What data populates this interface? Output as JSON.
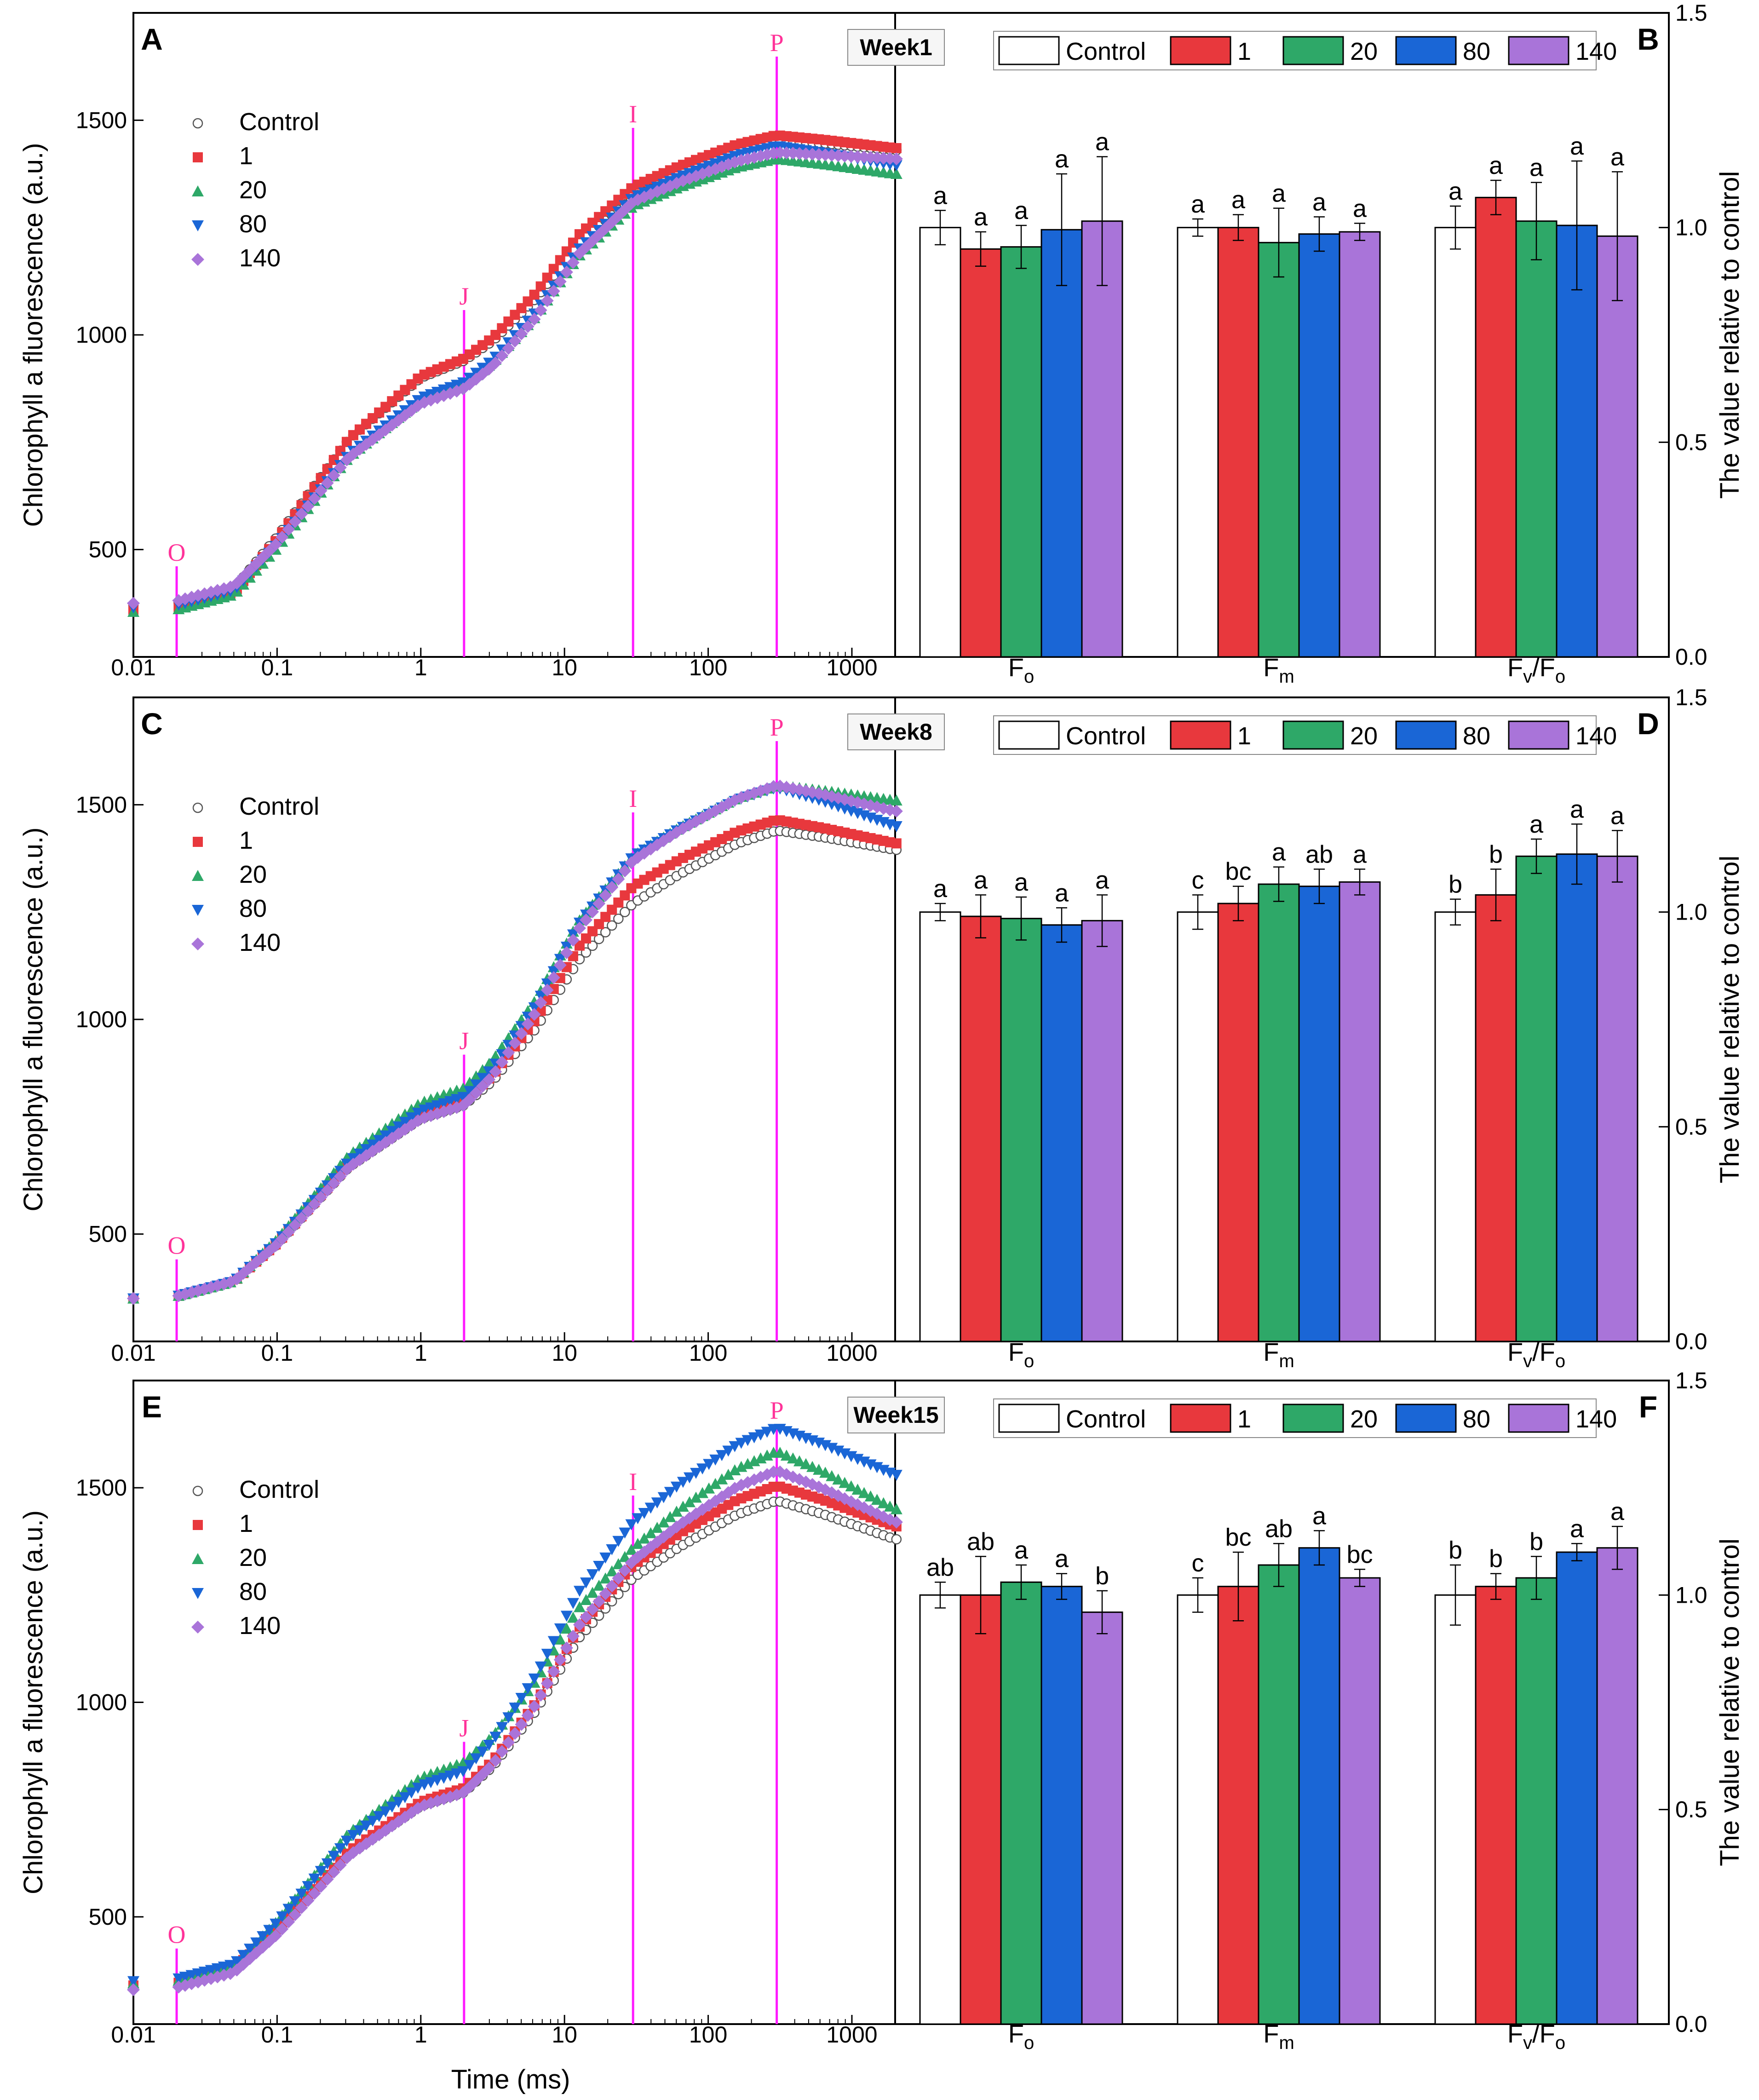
{
  "figure": {
    "x_axis_title": "Time (ms)",
    "y_axis_title_left": "Chlorophyll a fluorescence (a.u.)",
    "y_axis_title_right": "The value relative to control",
    "x_tick_labels": [
      "0.01",
      "0.1",
      "1",
      "10",
      "100",
      "1000"
    ],
    "y_tick_labels_left": [
      "500",
      "1000",
      "1500"
    ],
    "y_tick_labels_right": [
      "0.0",
      "0.5",
      "1.0",
      "1.5"
    ],
    "ojip_markers": [
      {
        "label": "O",
        "time_ms": 0.02
      },
      {
        "label": "J",
        "time_ms": 2
      },
      {
        "label": "I",
        "time_ms": 30
      },
      {
        "label": "P",
        "time_ms": 300
      }
    ],
    "categories": [
      "Fo",
      "Fm",
      "Fv/Fo"
    ],
    "series": [
      {
        "name": "Control",
        "color": "#ffffff",
        "marker": "circle-open"
      },
      {
        "name": "1",
        "color": "#e8383d",
        "marker": "square"
      },
      {
        "name": "20",
        "color": "#2ea868",
        "marker": "triangle-up"
      },
      {
        "name": "80",
        "color": "#1a66d6",
        "marker": "triangle-down"
      },
      {
        "name": "140",
        "color": "#a974d9",
        "marker": "diamond"
      }
    ],
    "marker_color": "#ff1aff",
    "marker_label_color": "#ff3399"
  },
  "chart_data": [
    {
      "panel": "A",
      "type": "scatter",
      "week_label": "Week1",
      "xlabel": "Time (ms)",
      "ylabel": "Chlorophyll a fluorescence (a.u.)",
      "x_scale": "log",
      "xlim": [
        0.01,
        2000
      ],
      "ylim": [
        250,
        1750
      ],
      "curves": {
        "Control": {
          "F0": 370,
          "J": 940,
          "I": 1320,
          "P": 1455,
          "end": 1430
        },
        "1": {
          "F0": 360,
          "J": 945,
          "I": 1345,
          "P": 1465,
          "end": 1435
        },
        "20": {
          "F0": 355,
          "J": 885,
          "I": 1300,
          "P": 1410,
          "end": 1375
        },
        "80": {
          "F0": 365,
          "J": 890,
          "I": 1320,
          "P": 1440,
          "end": 1395
        },
        "140": {
          "F0": 375,
          "J": 875,
          "I": 1310,
          "P": 1425,
          "end": 1410
        }
      }
    },
    {
      "panel": "B",
      "type": "bar",
      "week_label": "Week1",
      "ylabel": "The value relative to control",
      "ylim": [
        0,
        1.5
      ],
      "categories": [
        "Fo",
        "Fm",
        "Fv/Fo"
      ],
      "series": [
        {
          "name": "Control",
          "values": [
            1.0,
            1.0,
            1.0
          ],
          "errors": [
            0.04,
            0.02,
            0.05
          ],
          "letters": [
            "a",
            "a",
            "a"
          ]
        },
        {
          "name": "1",
          "values": [
            0.95,
            1.0,
            1.07
          ],
          "errors": [
            0.04,
            0.03,
            0.04
          ],
          "letters": [
            "a",
            "a",
            "a"
          ]
        },
        {
          "name": "20",
          "values": [
            0.955,
            0.965,
            1.015
          ],
          "errors": [
            0.05,
            0.08,
            0.09
          ],
          "letters": [
            "a",
            "a",
            "a"
          ]
        },
        {
          "name": "80",
          "values": [
            0.995,
            0.985,
            1.005
          ],
          "errors": [
            0.13,
            0.04,
            0.15
          ],
          "letters": [
            "a",
            "a",
            "a"
          ]
        },
        {
          "name": "140",
          "values": [
            1.015,
            0.99,
            0.98
          ],
          "errors": [
            0.15,
            0.02,
            0.15
          ],
          "letters": [
            "a",
            "a",
            "a"
          ]
        }
      ]
    },
    {
      "panel": "C",
      "type": "scatter",
      "week_label": "Week8",
      "xlabel": "Time (ms)",
      "ylabel": "Chlorophyll a fluorescence (a.u.)",
      "x_scale": "log",
      "xlim": [
        0.01,
        2000
      ],
      "ylim": [
        250,
        1750
      ],
      "curves": {
        "Control": {
          "F0": 350,
          "J": 800,
          "I": 1270,
          "P": 1440,
          "end": 1395
        },
        "1": {
          "F0": 350,
          "J": 810,
          "I": 1310,
          "P": 1465,
          "end": 1410
        },
        "20": {
          "F0": 350,
          "J": 840,
          "I": 1380,
          "P": 1545,
          "end": 1510
        },
        "80": {
          "F0": 350,
          "J": 820,
          "I": 1380,
          "P": 1540,
          "end": 1450
        },
        "140": {
          "F0": 350,
          "J": 800,
          "I": 1370,
          "P": 1545,
          "end": 1485
        }
      }
    },
    {
      "panel": "D",
      "type": "bar",
      "week_label": "Week8",
      "ylabel": "The value relative to control",
      "ylim": [
        0,
        1.5
      ],
      "categories": [
        "Fo",
        "Fm",
        "Fv/Fo"
      ],
      "series": [
        {
          "name": "Control",
          "values": [
            1.0,
            1.0,
            1.0
          ],
          "errors": [
            0.02,
            0.04,
            0.03
          ],
          "letters": [
            "a",
            "c",
            "b"
          ]
        },
        {
          "name": "1",
          "values": [
            0.99,
            1.02,
            1.04
          ],
          "errors": [
            0.05,
            0.04,
            0.06
          ],
          "letters": [
            "a",
            "bc",
            "b"
          ]
        },
        {
          "name": "20",
          "values": [
            0.985,
            1.065,
            1.13
          ],
          "errors": [
            0.05,
            0.04,
            0.04
          ],
          "letters": [
            "a",
            "a",
            "a"
          ]
        },
        {
          "name": "80",
          "values": [
            0.97,
            1.06,
            1.135
          ],
          "errors": [
            0.04,
            0.04,
            0.07
          ],
          "letters": [
            "a",
            "ab",
            "a"
          ]
        },
        {
          "name": "140",
          "values": [
            0.98,
            1.07,
            1.13
          ],
          "errors": [
            0.06,
            0.03,
            0.06
          ],
          "letters": [
            "a",
            "a",
            "a"
          ]
        }
      ]
    },
    {
      "panel": "E",
      "type": "scatter",
      "week_label": "Week15",
      "xlabel": "Time (ms)",
      "ylabel": "Chlorophyll a fluorescence (a.u.)",
      "x_scale": "log",
      "xlim": [
        0.01,
        2000
      ],
      "ylim": [
        250,
        1750
      ],
      "curves": {
        "Control": {
          "F0": 335,
          "J": 790,
          "I": 1290,
          "P": 1470,
          "end": 1380
        },
        "1": {
          "F0": 340,
          "J": 800,
          "I": 1320,
          "P": 1505,
          "end": 1410
        },
        "20": {
          "F0": 345,
          "J": 860,
          "I": 1360,
          "P": 1585,
          "end": 1450
        },
        "80": {
          "F0": 350,
          "J": 840,
          "I": 1420,
          "P": 1640,
          "end": 1530
        },
        "140": {
          "F0": 330,
          "J": 790,
          "I": 1330,
          "P": 1540,
          "end": 1420
        }
      }
    },
    {
      "panel": "F",
      "type": "bar",
      "week_label": "Week15",
      "ylabel": "The value relative to control",
      "ylim": [
        0,
        1.5
      ],
      "categories": [
        "Fo",
        "Fm",
        "Fv/Fo"
      ],
      "series": [
        {
          "name": "Control",
          "values": [
            1.0,
            1.0,
            1.0
          ],
          "errors": [
            0.03,
            0.04,
            0.07
          ],
          "letters": [
            "ab",
            "c",
            "b"
          ]
        },
        {
          "name": "1",
          "values": [
            1.0,
            1.02,
            1.02
          ],
          "errors": [
            0.09,
            0.08,
            0.03
          ],
          "letters": [
            "ab",
            "bc",
            "b"
          ]
        },
        {
          "name": "20",
          "values": [
            1.03,
            1.07,
            1.04
          ],
          "errors": [
            0.04,
            0.05,
            0.05
          ],
          "letters": [
            "a",
            "ab",
            "b"
          ]
        },
        {
          "name": "80",
          "values": [
            1.02,
            1.11,
            1.1
          ],
          "errors": [
            0.03,
            0.04,
            0.02
          ],
          "letters": [
            "a",
            "a",
            "a"
          ]
        },
        {
          "name": "140",
          "values": [
            0.96,
            1.04,
            1.11
          ],
          "errors": [
            0.05,
            0.02,
            0.05
          ],
          "letters": [
            "b",
            "bc",
            "a"
          ]
        }
      ]
    }
  ]
}
